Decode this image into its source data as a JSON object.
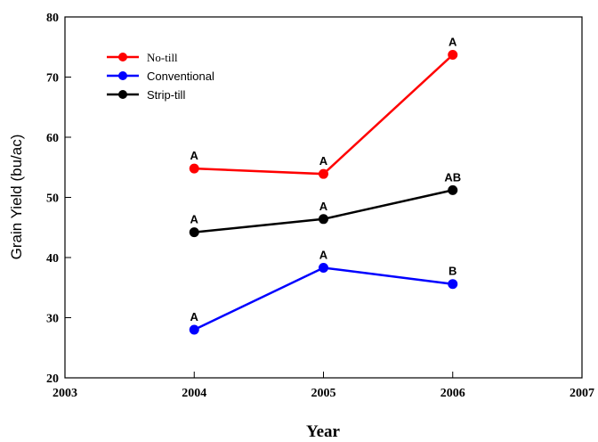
{
  "chart_data": {
    "type": "line",
    "title": "",
    "xlabel": "Year",
    "ylabel": "Grain Yield (bu/ac)",
    "xlim": [
      2003,
      2007
    ],
    "ylim": [
      20,
      80
    ],
    "x_ticks": [
      2003,
      2004,
      2005,
      2006,
      2007
    ],
    "y_ticks": [
      20,
      30,
      40,
      50,
      60,
      70,
      80
    ],
    "grid": false,
    "legend_position": "top-left",
    "series": [
      {
        "name": "No-till",
        "color": "#ff0000",
        "points": [
          {
            "x": 2004,
            "y": 54.8,
            "label": "A"
          },
          {
            "x": 2005,
            "y": 53.9,
            "label": "A"
          },
          {
            "x": 2006,
            "y": 73.7,
            "label": "A"
          }
        ]
      },
      {
        "name": "Conventional",
        "color": "#0000ff",
        "points": [
          {
            "x": 2004,
            "y": 28.0,
            "label": "A"
          },
          {
            "x": 2005,
            "y": 38.3,
            "label": "A"
          },
          {
            "x": 2006,
            "y": 35.6,
            "label": "B"
          }
        ]
      },
      {
        "name": "Strip-till",
        "color": "#000000",
        "points": [
          {
            "x": 2004,
            "y": 44.2,
            "label": "A"
          },
          {
            "x": 2005,
            "y": 46.4,
            "label": "A"
          },
          {
            "x": 2006,
            "y": 51.2,
            "label": "AB"
          }
        ]
      }
    ]
  }
}
